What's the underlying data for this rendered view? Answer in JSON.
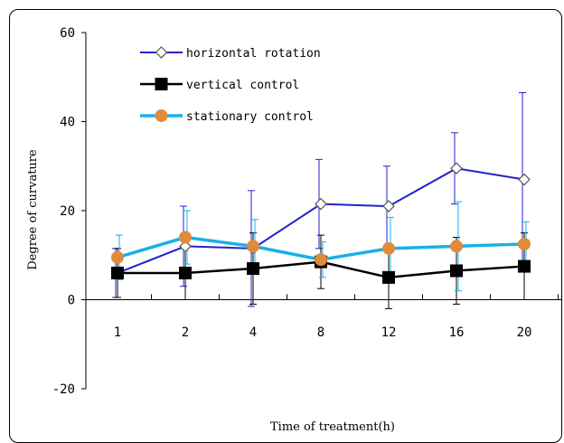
{
  "chart_data": {
    "type": "line",
    "categories": [
      "1",
      "2",
      "4",
      "8",
      "12",
      "16",
      "20"
    ],
    "xlabel": "Time of treatment(h)",
    "ylabel": "Degree of curvature",
    "ylim": [
      -20,
      60
    ],
    "yticks": [
      -20,
      0,
      20,
      40,
      60
    ],
    "legend": "top-left",
    "series": [
      {
        "name": "horizontal rotation",
        "color": "#2222cc",
        "marker": "diamond-open",
        "values": [
          6,
          12,
          11.5,
          21.5,
          21,
          29.5,
          27
        ],
        "error": [
          5.5,
          9,
          13,
          10,
          9,
          8,
          19.5
        ]
      },
      {
        "name": "vertical control",
        "color": "#000000",
        "marker": "square-filled",
        "values": [
          6,
          6,
          7,
          8.5,
          5,
          6.5,
          7.5
        ],
        "error": [
          5.5,
          6,
          8,
          6,
          7,
          7.5,
          7.5
        ]
      },
      {
        "name": "stationary control",
        "color": "#1ab0e8",
        "marker": "circle-orange",
        "marker_color": "#e08a3c",
        "values": [
          9.5,
          14,
          12,
          9,
          11.5,
          12,
          12.5
        ],
        "error": [
          5,
          6,
          6,
          4,
          7,
          10,
          5
        ]
      }
    ]
  }
}
